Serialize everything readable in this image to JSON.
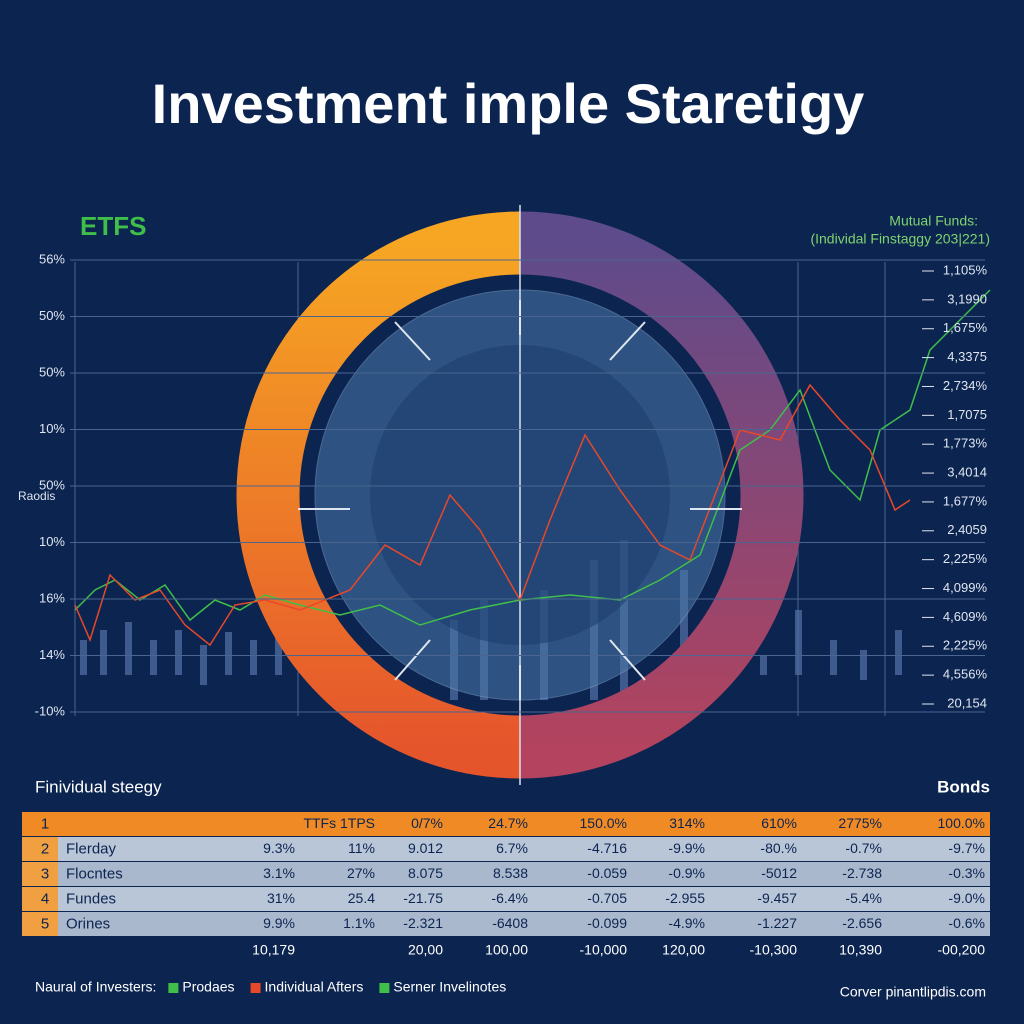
{
  "title": "Investment imple Staretigy",
  "left_heading": "ETFS",
  "right_heading": [
    "Mutual Funds:",
    "(Individal Finstaggy 203|221)"
  ],
  "left_axis_title": "Raodis",
  "left_axis": [
    "56%",
    "50%",
    "50%",
    "10%",
    "50%",
    "10%",
    "16%",
    "14%",
    "-10%"
  ],
  "right_axis": [
    "1,105%",
    "3,1990",
    "1,675%",
    "4,3375",
    "2,734%",
    "1,7075",
    "1,773%",
    "3,4014",
    "1,677%",
    "2,4059",
    "2,225%",
    "4,099%",
    "4,609%",
    "2,225%",
    "4,556%",
    "20,154"
  ],
  "table": {
    "title": "Finividual steegy",
    "corner": "Bonds",
    "rows": [
      {
        "num": "1",
        "name": null,
        "cells": [
          null,
          "TTFs 1TPS",
          "0/7%",
          "24.7%",
          "150.0%",
          "314%",
          "610%",
          "2775%",
          "100.0%"
        ]
      },
      {
        "num": "2",
        "name": "Flerday",
        "cells": [
          "9.3%",
          "11%",
          "9.012",
          "6.7%",
          "-4.716",
          "-9.9%",
          "-80.%",
          "-0.7%",
          "-9.7%"
        ]
      },
      {
        "num": "3",
        "name": "Flocntes",
        "cells": [
          "3.1%",
          "27%",
          "8.075",
          "8.538",
          "-0.059",
          "-0.9%",
          "-5012",
          "-2.738",
          "-0.3%"
        ]
      },
      {
        "num": "4",
        "name": "Fundes",
        "cells": [
          "31%",
          "25.4",
          "-21.75",
          "-6.4%",
          "-0.705",
          "-2.955",
          "-9.457",
          "-5.4%",
          "-9.0%"
        ]
      },
      {
        "num": "5",
        "name": "Orines",
        "cells": [
          "9.9%",
          "1.1%",
          "-2.321",
          "-6408",
          "-0.099",
          "-4.9%",
          "-1.227",
          "-2.656",
          "-0.6%"
        ]
      }
    ],
    "totals": [
      "10,179",
      null,
      "20,00",
      "100,00",
      "-10,000",
      "120,00",
      "-10,300",
      "10,390",
      "-00,200"
    ]
  },
  "legend": {
    "label": "Naural of Investers:",
    "items": [
      {
        "name": "Prodaes",
        "color": "#3fbf4a"
      },
      {
        "name": "Individual Afters",
        "color": "#e8482a"
      },
      {
        "name": "Serner Invelinotes",
        "color": "#3fbf4a"
      }
    ]
  },
  "footer": "Corver pinantlipdis.com"
}
